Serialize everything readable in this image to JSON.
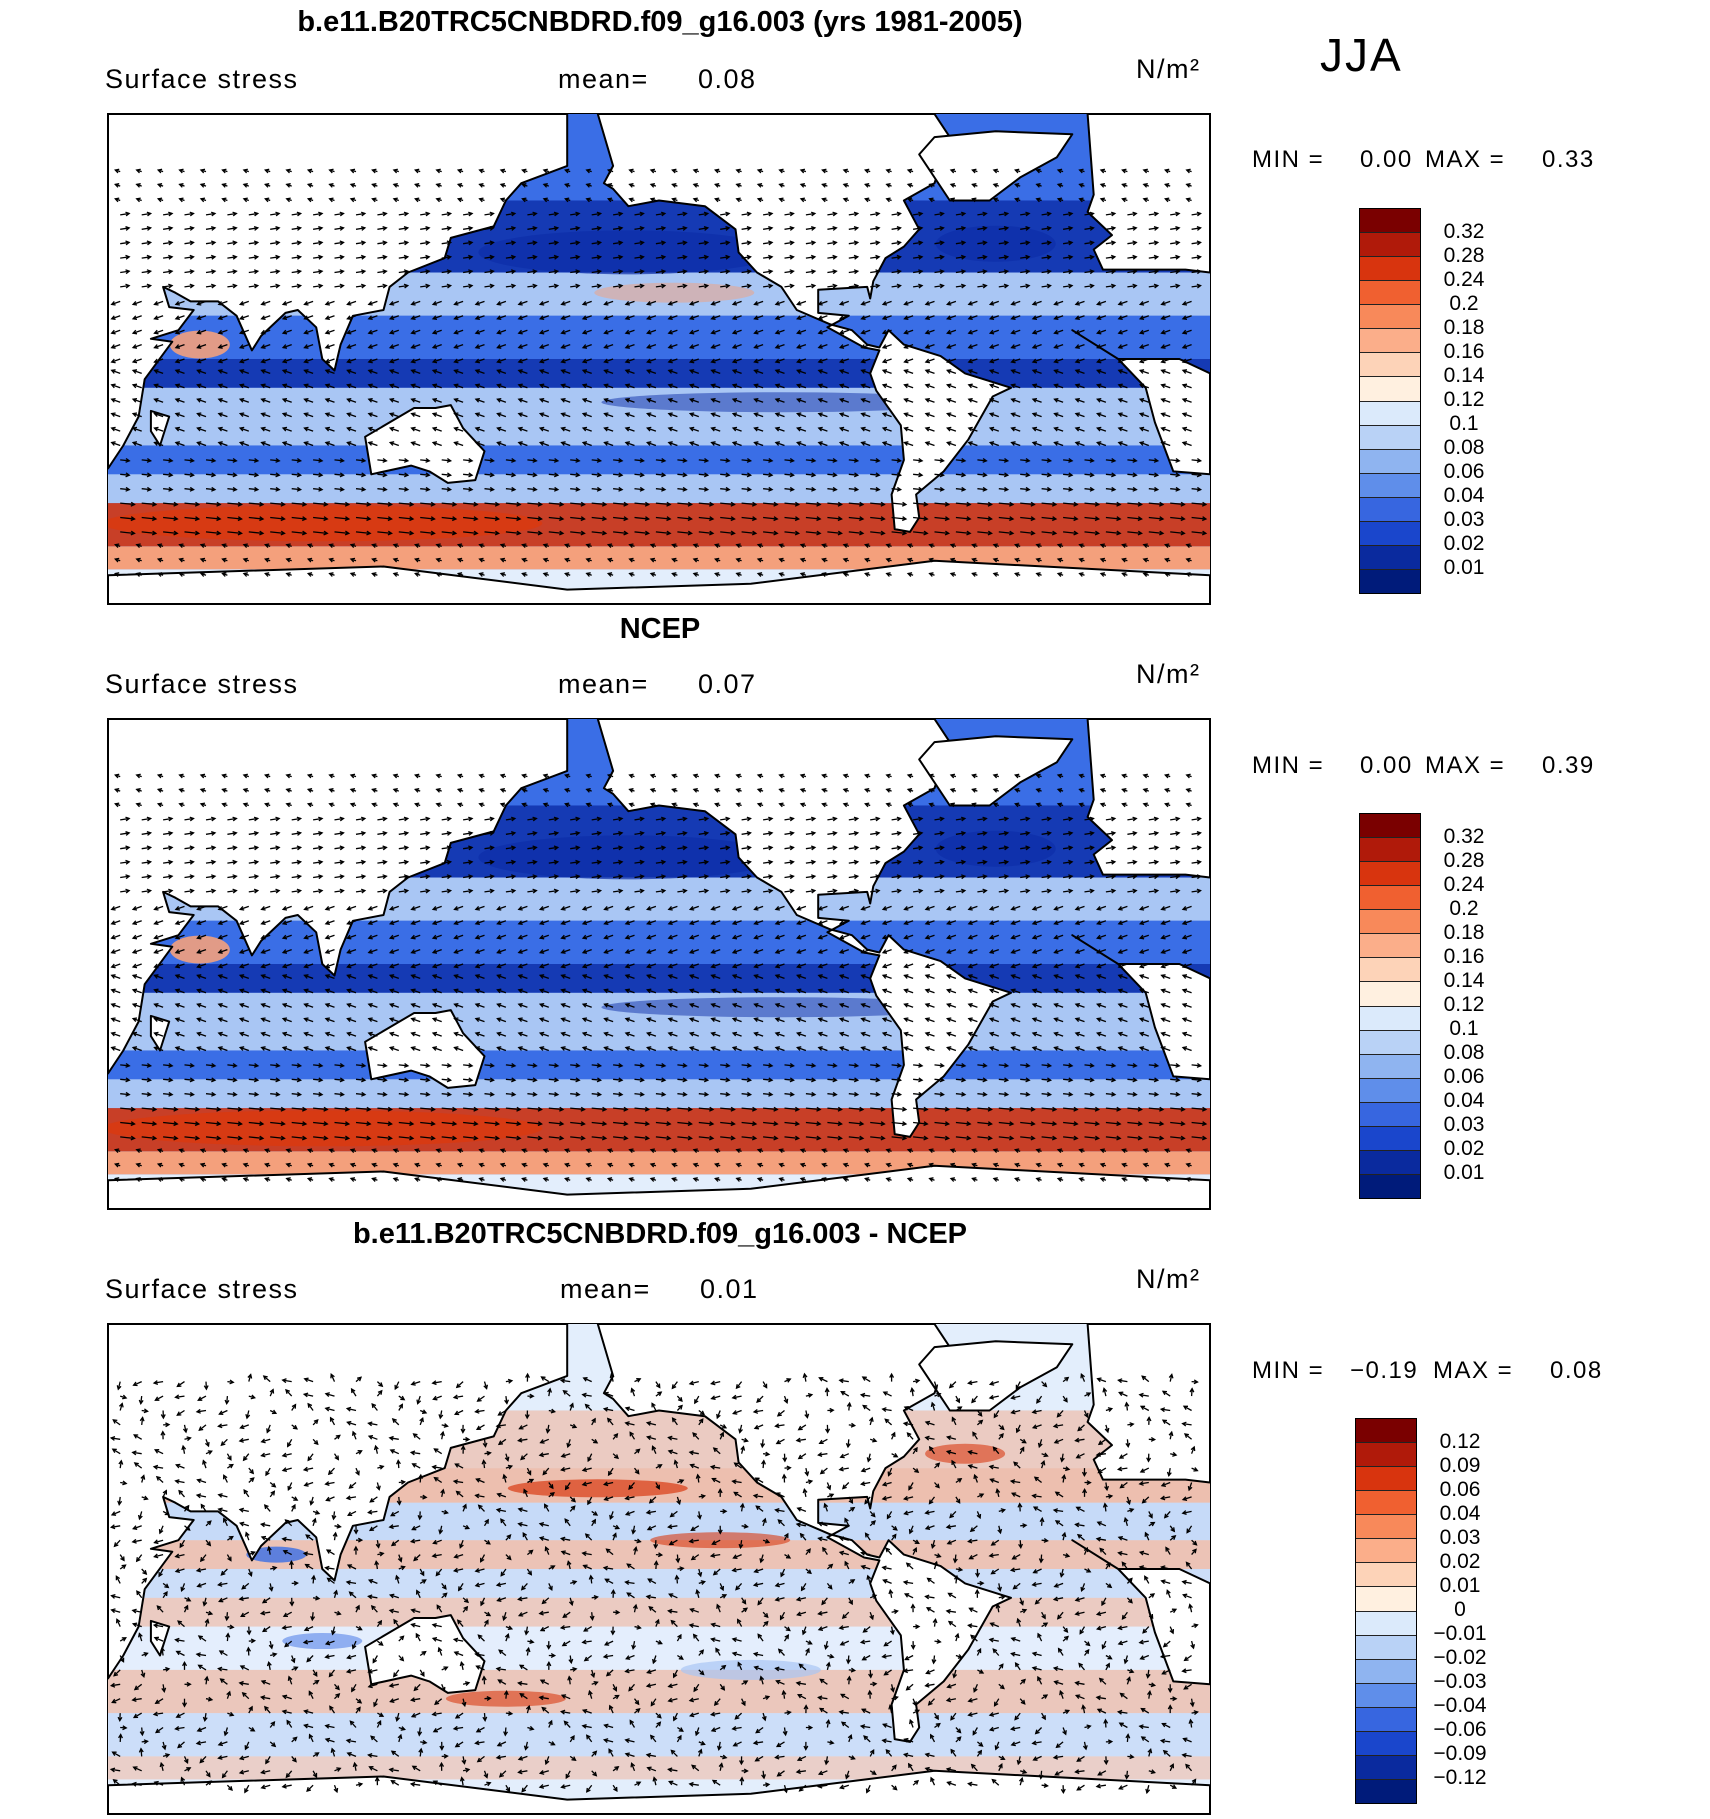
{
  "season": "JJA",
  "panels": [
    {
      "title": "b.e11.B20TRC5CNBDRD.f09_g16.003 (yrs 1981-2005)",
      "variable": "Surface stress",
      "mean_label": "mean=",
      "mean_value": "0.08",
      "units": "N/m²",
      "min_label": "MIN =",
      "min_value": "0.00",
      "max_label": "MAX =",
      "max_value": "0.33",
      "colorbar_labels": [
        "0.32",
        "0.28",
        "0.24",
        "0.2",
        "0.18",
        "0.16",
        "0.14",
        "0.12",
        "0.1",
        "0.08",
        "0.06",
        "0.04",
        "0.03",
        "0.02",
        "0.01"
      ]
    },
    {
      "title": "NCEP",
      "variable": "Surface stress",
      "mean_label": "mean=",
      "mean_value": "0.07",
      "units": "N/m²",
      "min_label": "MIN =",
      "min_value": "0.00",
      "max_label": "MAX =",
      "max_value": "0.39",
      "colorbar_labels": [
        "0.32",
        "0.28",
        "0.24",
        "0.2",
        "0.18",
        "0.16",
        "0.14",
        "0.12",
        "0.1",
        "0.08",
        "0.06",
        "0.04",
        "0.03",
        "0.02",
        "0.01"
      ]
    },
    {
      "title": "b.e11.B20TRC5CNBDRD.f09_g16.003 - NCEP",
      "variable": "Surface stress",
      "mean_label": "mean=",
      "mean_value": "0.01",
      "units": "N/m²",
      "min_label": "MIN =",
      "min_value": "−0.19",
      "max_label": "MAX =",
      "max_value": "0.08",
      "colorbar_labels": [
        "0.12",
        "0.09",
        "0.06",
        "0.04",
        "0.03",
        "0.02",
        "0.01",
        "0",
        "−0.01",
        "−0.02",
        "−0.03",
        "−0.04",
        "−0.06",
        "−0.09",
        "−0.12"
      ]
    }
  ],
  "colorbar_colors": [
    "#7a0000",
    "#b01a0a",
    "#d8340e",
    "#f06030",
    "#f8895a",
    "#fbae8a",
    "#fdd3b8",
    "#fff0e0",
    "#dbeafb",
    "#b9d2f6",
    "#8fb4f0",
    "#5f8eea",
    "#3766e0",
    "#1a46cc",
    "#0a2a9e",
    "#001b7a"
  ],
  "map_palette": {
    "ocean_low": "#0d2da8",
    "ocean_mid": "#3a6ee6",
    "ocean_light": "#a9c6f4",
    "ocean_pale": "#e3eefc",
    "strong": "#d83a12",
    "warm": "#f4a07c",
    "land": "#ffffff"
  }
}
